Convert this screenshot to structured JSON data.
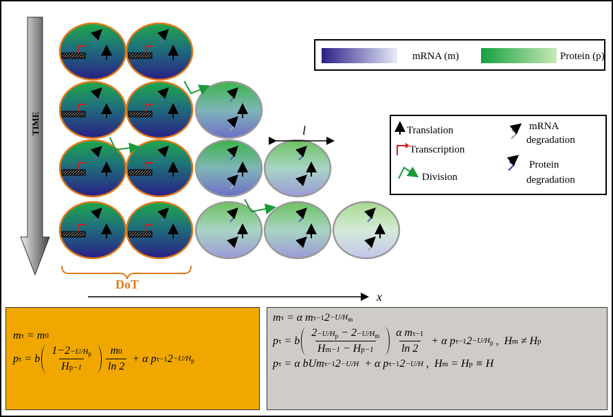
{
  "labels": {
    "time": "TIME",
    "mrna": "mRNA (m)",
    "protein": "Protein (p)",
    "length": "l",
    "dot": "DoT",
    "x_axis": "x"
  },
  "legend": {
    "translation": "Translation",
    "transcription": "Transcription",
    "division": "Division",
    "mrna_degradation": [
      "mRNA",
      "degradation"
    ],
    "protein_degradation": [
      "Protein",
      "degradation"
    ]
  },
  "equations": {
    "left": [
      [
        "m",
        {
          "sub": "τ"
        },
        " = m",
        {
          "sub": "0"
        }
      ],
      [
        "p",
        {
          "sub": "τ"
        },
        " = b",
        {
          "paren": [
            {
              "frac": [
                [
                  "1−2",
                  {
                    "sup": [
                      "−U/H",
                      {
                        "sub": "p"
                      }
                    ]
                  }
                ],
                [
                  "H",
                  {
                    "sub": "p"
                  },
                  {
                    "sup": "−1"
                  }
                ]
              ]
            }
          ]
        },
        {
          "frac": [
            [
              "m",
              {
                "sub": "0"
              }
            ],
            [
              "ln 2"
            ]
          ]
        },
        " + α p",
        {
          "sub": "τ−1"
        },
        "2",
        {
          "sup": [
            "−U/H",
            {
              "sub": "p"
            }
          ]
        }
      ]
    ],
    "right": [
      [
        "m",
        {
          "sub": "τ"
        },
        " = α m",
        {
          "sub": "τ−1"
        },
        "2",
        {
          "sup": [
            "−U/H",
            {
              "sub": "m"
            }
          ]
        }
      ],
      [
        "p",
        {
          "sub": "τ"
        },
        " = b",
        {
          "paren": [
            {
              "frac": [
                [
                  "2",
                  {
                    "sup": [
                      "−U/H",
                      {
                        "sub": "p"
                      }
                    ]
                  },
                  " − 2",
                  {
                    "sup": [
                      "−U/H",
                      {
                        "sub": "m"
                      }
                    ]
                  }
                ],
                [
                  "H",
                  {
                    "sub": "m"
                  },
                  {
                    "sup": "−1"
                  },
                  " − H",
                  {
                    "sub": "p"
                  },
                  {
                    "sup": "−1"
                  }
                ]
              ]
            }
          ]
        },
        {
          "frac": [
            [
              "α m",
              {
                "sub": "τ−1"
              }
            ],
            [
              "ln 2"
            ]
          ]
        },
        " + α p",
        {
          "sub": "τ−1"
        },
        "2",
        {
          "sup": [
            "−U/H",
            {
              "sub": "p"
            }
          ]
        },
        " ,  H",
        {
          "sub": "m"
        },
        " ≠ H",
        {
          "sub": "p"
        }
      ],
      [
        "p",
        {
          "sub": "τ"
        },
        " = α bUm",
        {
          "sub": "τ−1"
        },
        "2",
        {
          "sup": "−U/H"
        },
        "  + α p",
        {
          "sub": "τ−1"
        },
        "2",
        {
          "sup": "−U/H"
        },
        " ,  H",
        {
          "sub": "m"
        },
        " = H",
        {
          "sub": "p"
        },
        " ≡ H"
      ]
    ]
  }
}
